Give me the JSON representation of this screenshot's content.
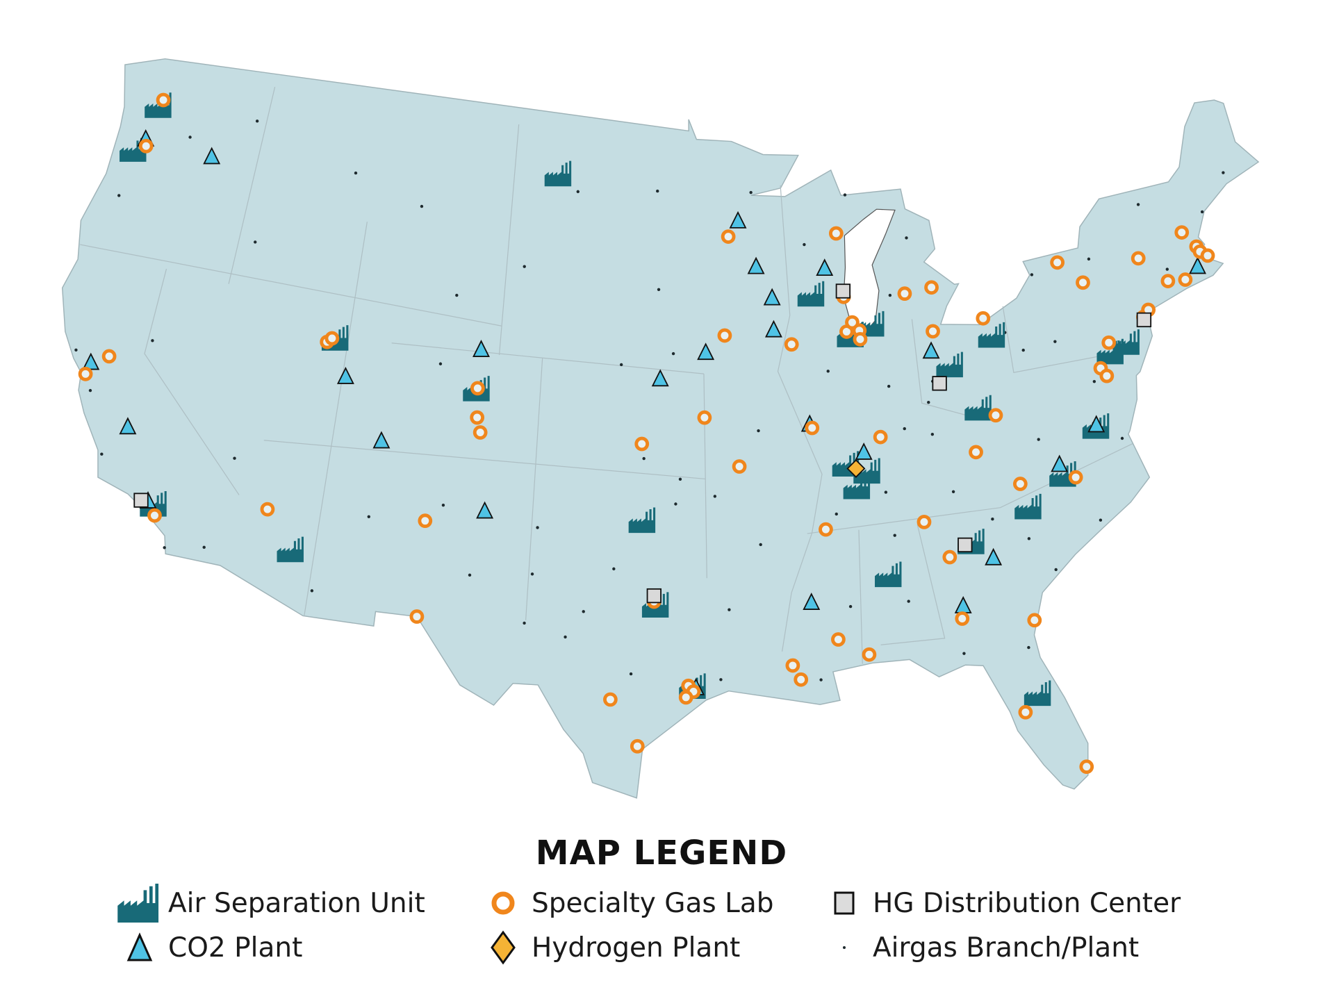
{
  "colors": {
    "land": "#c5dde2",
    "water": "#ffffff",
    "border": "#aebfc4",
    "air_separation_unit": "#186a78",
    "specialty_gas_lab": "#f0861c",
    "co2_plant": "#4fc3e5",
    "hg_distribution_center": "#d9d9d9",
    "hydrogen_plant": "#f5b335",
    "branch": "#1e2a2e"
  },
  "legend": {
    "title": "MAP LEGEND",
    "items": [
      {
        "icon": "factory-icon",
        "label": "Air Separation Unit"
      },
      {
        "icon": "ring-icon",
        "label": "Specialty Gas Lab"
      },
      {
        "icon": "square-icon",
        "label": "HG Distribution Center"
      },
      {
        "icon": "triangle-icon",
        "label": "CO2 Plant"
      },
      {
        "icon": "diamond-icon",
        "label": "Hydrogen Plant"
      },
      {
        "icon": "dot-icon",
        "label": "Airgas Branch/Plant"
      }
    ]
  },
  "markers": {
    "air_separation_unit": [
      [
        -122.4,
        47.3
      ],
      [
        -123.0,
        45.6
      ],
      [
        -101.8,
        47.3
      ],
      [
        -111.6,
        40.8
      ],
      [
        -104.9,
        39.7
      ],
      [
        -118.0,
        34.0
      ],
      [
        -112.0,
        33.4
      ],
      [
        -97.3,
        35.5
      ],
      [
        -96.7,
        32.6
      ],
      [
        -95.2,
        29.8
      ],
      [
        -89.4,
        43.1
      ],
      [
        -87.7,
        41.6
      ],
      [
        -86.7,
        41.9
      ],
      [
        -81.2,
        41.0
      ],
      [
        -83.3,
        40.2
      ],
      [
        -82.3,
        38.6
      ],
      [
        -76.0,
        39.7
      ],
      [
        -75.2,
        39.9
      ],
      [
        -77.3,
        37.3
      ],
      [
        -79.1,
        35.9
      ],
      [
        -80.8,
        35.0
      ],
      [
        -83.4,
        34.1
      ],
      [
        -88.4,
        37.2
      ],
      [
        -87.5,
        36.9
      ],
      [
        -88.0,
        36.4
      ],
      [
        -87.0,
        33.3
      ],
      [
        -81.6,
        28.6
      ]
    ],
    "specialty_gas_lab": [
      [
        -122.3,
        47.6
      ],
      [
        -122.5,
        45.9
      ],
      [
        -121.5,
        38.6
      ],
      [
        -122.3,
        37.8
      ],
      [
        -117.9,
        33.7
      ],
      [
        -113.3,
        34.7
      ],
      [
        -112.0,
        40.7
      ],
      [
        -111.8,
        40.85
      ],
      [
        -104.9,
        39.8
      ],
      [
        -104.8,
        38.8
      ],
      [
        -104.6,
        38.3
      ],
      [
        -106.6,
        35.1
      ],
      [
        -106.5,
        31.8
      ],
      [
        -98.5,
        29.4
      ],
      [
        -97.4,
        27.8
      ],
      [
        -95.4,
        29.9
      ],
      [
        -95.2,
        29.7
      ],
      [
        -95.5,
        29.5
      ],
      [
        -96.8,
        32.8
      ],
      [
        -97.4,
        38.2
      ],
      [
        -94.6,
        39.1
      ],
      [
        -93.1,
        37.4
      ],
      [
        -93.6,
        41.9
      ],
      [
        -93.3,
        45.3
      ],
      [
        -90.5,
        41.5
      ],
      [
        -88.0,
        45.2
      ],
      [
        -87.9,
        41.8
      ],
      [
        -87.6,
        42.1
      ],
      [
        -87.3,
        41.8
      ],
      [
        -87.3,
        41.5
      ],
      [
        -87.9,
        43.0
      ],
      [
        -89.8,
        38.6
      ],
      [
        -86.8,
        38.1
      ],
      [
        -89.5,
        35.1
      ],
      [
        -89.3,
        31.3
      ],
      [
        -91.2,
        30.5
      ],
      [
        -90.9,
        30.0
      ],
      [
        -88.1,
        30.7
      ],
      [
        -85.3,
        35.05
      ],
      [
        -82.7,
        37.2
      ],
      [
        -81.0,
        35.9
      ],
      [
        -84.4,
        33.75
      ],
      [
        -84.2,
        31.6
      ],
      [
        -81.3,
        31.2
      ],
      [
        -82.2,
        28.1
      ],
      [
        -80.2,
        25.9
      ],
      [
        -78.6,
        35.8
      ],
      [
        -81.6,
        38.35
      ],
      [
        -81.5,
        41.7
      ],
      [
        -83.9,
        41.5
      ],
      [
        -85.0,
        42.9
      ],
      [
        -83.7,
        43.0
      ],
      [
        -76.6,
        39.3
      ],
      [
        -76.4,
        39.0
      ],
      [
        -74.2,
        40.7
      ],
      [
        -73.9,
        40.9
      ],
      [
        -76.0,
        40.1
      ],
      [
        -76.6,
        42.3
      ],
      [
        -77.6,
        43.15
      ],
      [
        -73.8,
        42.7
      ],
      [
        -71.5,
        43.2
      ],
      [
        -71.0,
        42.6
      ],
      [
        -70.9,
        42.4
      ],
      [
        -70.6,
        42.2
      ],
      [
        -72.7,
        41.7
      ],
      [
        -71.9,
        41.6
      ]
    ],
    "co2_plant": [
      [
        -122.6,
        46.1
      ],
      [
        -119.2,
        46.1
      ],
      [
        -122.2,
        38.2
      ],
      [
        -119.9,
        36.4
      ],
      [
        -118.3,
        34.1
      ],
      [
        -110.9,
        39.6
      ],
      [
        -108.9,
        37.6
      ],
      [
        -104.9,
        41.1
      ],
      [
        -104.1,
        35.6
      ],
      [
        -96.6,
        40.4
      ],
      [
        -94.5,
        41.3
      ],
      [
        -92.8,
        45.8
      ],
      [
        -92.0,
        44.2
      ],
      [
        -91.3,
        43.1
      ],
      [
        -91.3,
        42.0
      ],
      [
        -88.7,
        44.0
      ],
      [
        -89.9,
        38.7
      ],
      [
        -87.6,
        37.6
      ],
      [
        -84.1,
        40.8
      ],
      [
        -82.6,
        33.5
      ],
      [
        -90.3,
        32.6
      ],
      [
        -84.1,
        32.0
      ],
      [
        -79.2,
        36.3
      ],
      [
        -71.2,
        41.9
      ],
      [
        -77.3,
        37.4
      ],
      [
        -95.1,
        29.8
      ]
    ],
    "hg_distribution_center": [
      [
        -118.6,
        34.1
      ],
      [
        -87.9,
        43.2
      ],
      [
        -83.9,
        39.7
      ],
      [
        -74.2,
        40.6
      ],
      [
        -83.7,
        34.1
      ],
      [
        -96.8,
        33.0
      ]
    ],
    "hydrogen_plant": [
      [
        -88.0,
        37.1
      ]
    ],
    "branch": [
      [
        -117.4,
        47.7
      ],
      [
        -116.2,
        43.6
      ],
      [
        -119.8,
        39.5
      ],
      [
        -115.1,
        36.2
      ],
      [
        -117.2,
        32.7
      ],
      [
        -121.9,
        37.3
      ],
      [
        -120.5,
        46.6
      ],
      [
        -123.1,
        44.0
      ],
      [
        -112.0,
        46.6
      ],
      [
        -108.5,
        45.8
      ],
      [
        -106.3,
        42.9
      ],
      [
        -110.9,
        32.2
      ],
      [
        -106.7,
        40.5
      ],
      [
        -103.2,
        44.1
      ],
      [
        -100.8,
        46.8
      ],
      [
        -96.8,
        46.9
      ],
      [
        -96.7,
        43.5
      ],
      [
        -98.4,
        40.9
      ],
      [
        -96.0,
        41.3
      ],
      [
        -97.3,
        37.7
      ],
      [
        -101.8,
        35.2
      ],
      [
        -101.9,
        33.6
      ],
      [
        -102.1,
        31.9
      ],
      [
        -100.4,
        31.5
      ],
      [
        -97.7,
        30.3
      ],
      [
        -94.1,
        30.1
      ],
      [
        -93.7,
        32.5
      ],
      [
        -92.3,
        34.7
      ],
      [
        -94.2,
        36.4
      ],
      [
        -92.2,
        38.6
      ],
      [
        -90.6,
        41.5
      ],
      [
        -92.1,
        46.8
      ],
      [
        -89.6,
        44.9
      ],
      [
        -88.9,
        40.5
      ],
      [
        -86.2,
        39.8
      ],
      [
        -85.7,
        38.3
      ],
      [
        -84.5,
        38.0
      ],
      [
        -84.5,
        39.1
      ],
      [
        -86.8,
        36.2
      ],
      [
        -83.9,
        35.96
      ],
      [
        -86.3,
        32.4
      ],
      [
        -88.7,
        32.4
      ],
      [
        -90.1,
        29.95
      ],
      [
        -84.3,
        30.4
      ],
      [
        -81.7,
        30.3
      ],
      [
        -81.4,
        28.5
      ],
      [
        -80.1,
        32.8
      ],
      [
        -81.0,
        34.0
      ],
      [
        -79.9,
        37.3
      ],
      [
        -77.4,
        37.5
      ],
      [
        -76.3,
        36.8
      ],
      [
        -77.0,
        38.9
      ],
      [
        -79.9,
        40.4
      ],
      [
        -78.9,
        42.9
      ],
      [
        -76.1,
        43.05
      ],
      [
        -73.2,
        44.5
      ],
      [
        -70.3,
        43.7
      ],
      [
        -68.8,
        44.8
      ],
      [
        -72.6,
        42.1
      ],
      [
        -85.7,
        42.9
      ],
      [
        -84.6,
        44.8
      ],
      [
        -87.4,
        46.5
      ],
      [
        -82.9,
        40.0
      ],
      [
        -84.2,
        39.8
      ],
      [
        -80.6,
        41.1
      ],
      [
        -78.4,
        40.5
      ],
      [
        -77.9,
        34.2
      ],
      [
        -82.4,
        34.85
      ],
      [
        -86.6,
        34.7
      ],
      [
        -89.0,
        35.6
      ],
      [
        -98.5,
        33.9
      ],
      [
        -95.9,
        36.15
      ],
      [
        -99.7,
        32.4
      ],
      [
        -104.5,
        33.4
      ],
      [
        -123.0,
        38.5
      ],
      [
        -120.7,
        35.3
      ],
      [
        -115.6,
        33.0
      ],
      [
        -109.0,
        35.0
      ],
      [
        -105.9,
        35.7
      ],
      [
        -95.7,
        37.0
      ]
    ]
  }
}
